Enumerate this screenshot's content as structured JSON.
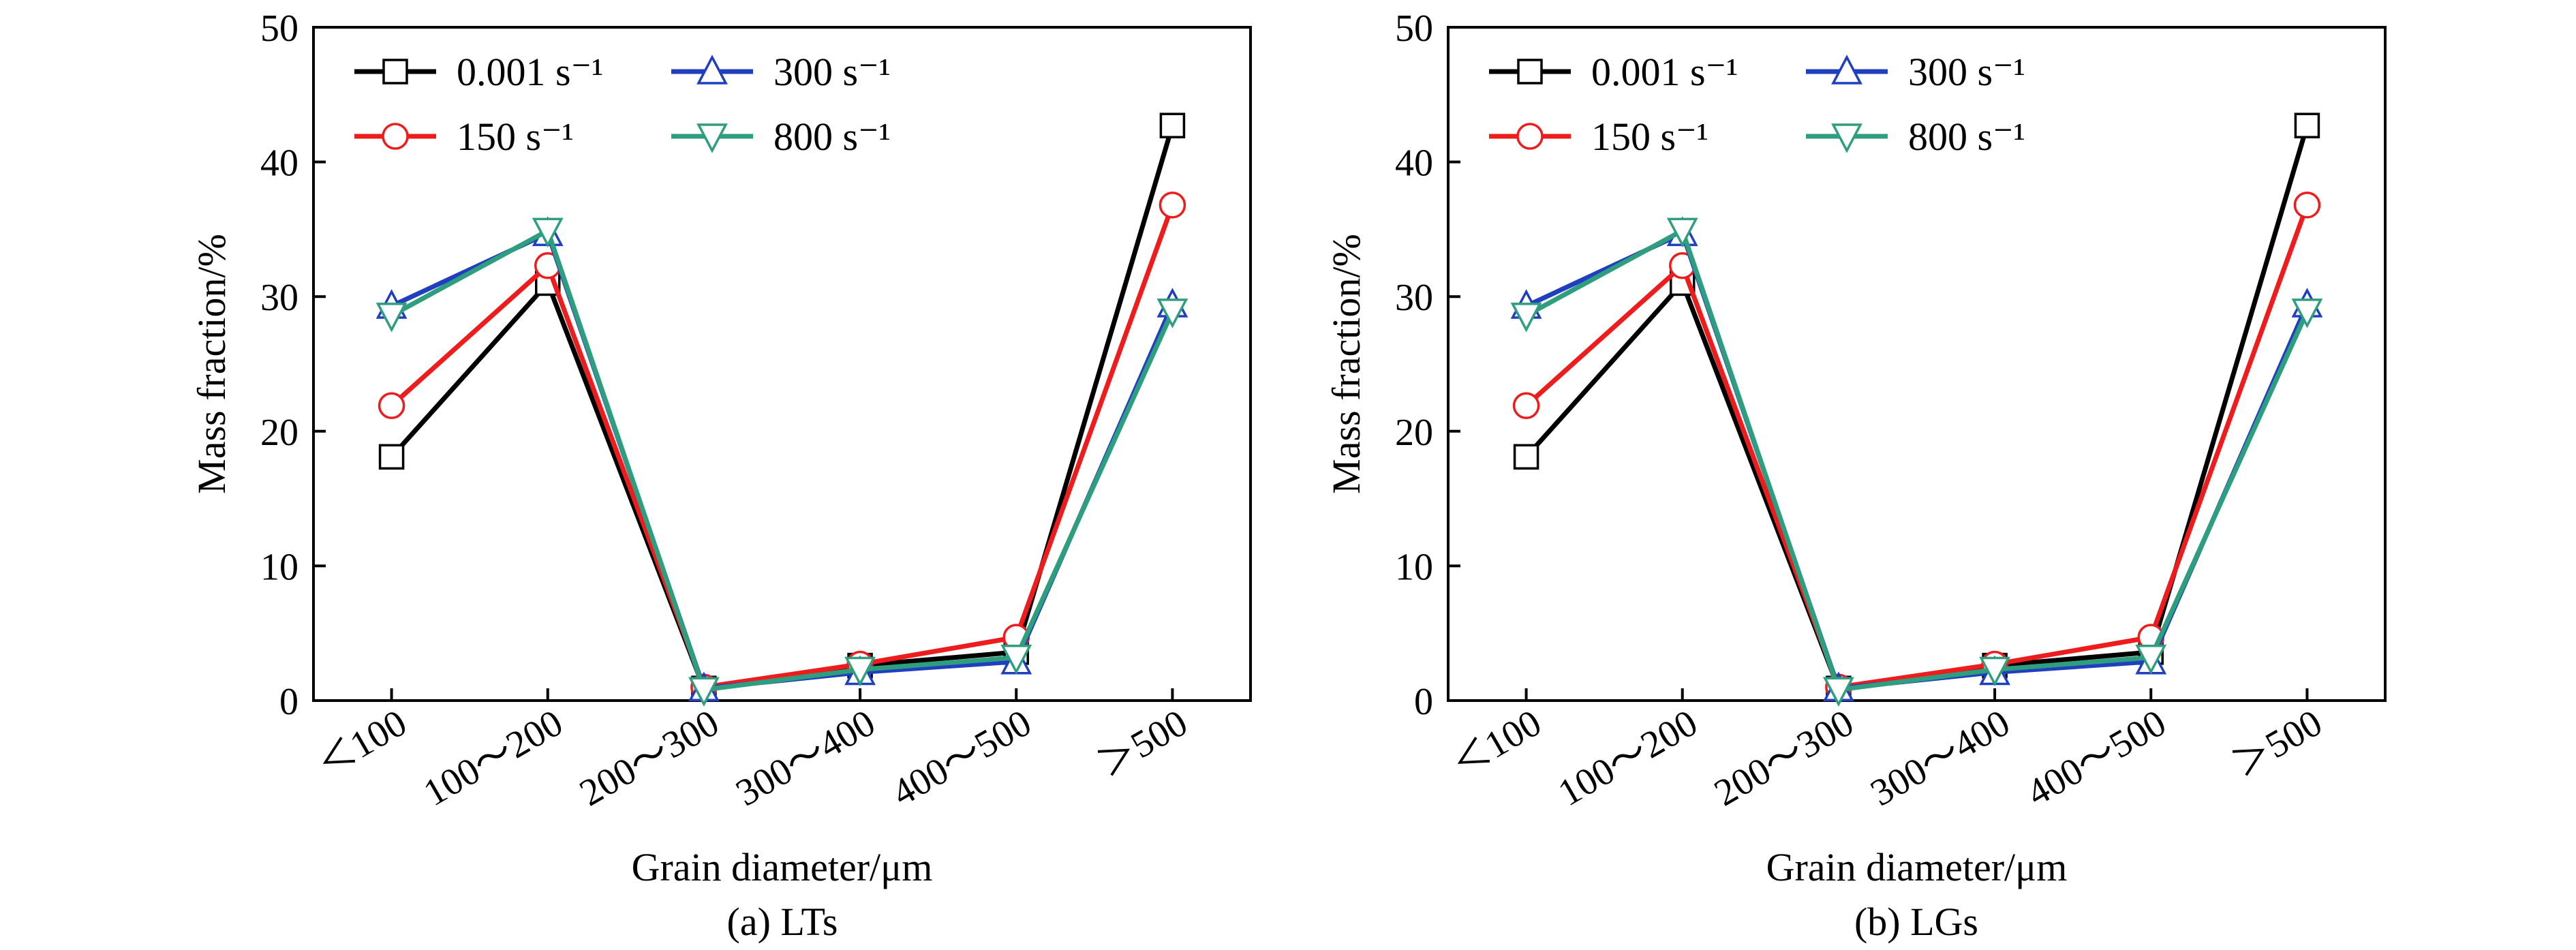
{
  "chart_data": [
    {
      "type": "line",
      "caption": "(a) LTs",
      "xlabel": "Grain diameter/μm",
      "ylabel": "Mass fraction/%",
      "categories": [
        "＜100",
        "100～200",
        "200～300",
        "300～400",
        "400～500",
        "＞500"
      ],
      "ylim": [
        0,
        50
      ],
      "yticks": [
        0,
        10,
        20,
        30,
        40,
        50
      ],
      "grid": false,
      "legend_position": "top-left",
      "series": [
        {
          "name": "0.001 s⁻¹",
          "color": "#000000",
          "marker": "square",
          "values": [
            18.1,
            31.0,
            0.9,
            2.6,
            3.6,
            42.7
          ]
        },
        {
          "name": "150 s⁻¹",
          "color": "#ee1c1c",
          "marker": "circle",
          "values": [
            21.9,
            32.3,
            1.0,
            2.7,
            4.7,
            36.8
          ]
        },
        {
          "name": "300 s⁻¹",
          "color": "#1f3fbf",
          "marker": "triangle-up",
          "values": [
            29.3,
            34.7,
            0.9,
            2.1,
            2.9,
            29.4
          ]
        },
        {
          "name": "800 s⁻¹",
          "color": "#2e9e7f",
          "marker": "triangle-down",
          "values": [
            28.6,
            34.9,
            0.8,
            2.3,
            3.2,
            28.9
          ]
        }
      ]
    },
    {
      "type": "line",
      "caption": "(b) LGs",
      "xlabel": "Grain diameter/μm",
      "ylabel": "Mass fraction/%",
      "categories": [
        "＜100",
        "100～200",
        "200～300",
        "300～400",
        "400～500",
        "＞500"
      ],
      "ylim": [
        0,
        50
      ],
      "yticks": [
        0,
        10,
        20,
        30,
        40,
        50
      ],
      "grid": false,
      "legend_position": "top-left",
      "series": [
        {
          "name": "0.001 s⁻¹",
          "color": "#000000",
          "marker": "square",
          "values": [
            18.1,
            31.0,
            0.9,
            2.6,
            3.6,
            42.7
          ]
        },
        {
          "name": "150 s⁻¹",
          "color": "#ee1c1c",
          "marker": "circle",
          "values": [
            21.9,
            32.3,
            1.0,
            2.7,
            4.7,
            36.8
          ]
        },
        {
          "name": "300 s⁻¹",
          "color": "#1f3fbf",
          "marker": "triangle-up",
          "values": [
            29.3,
            34.7,
            0.9,
            2.1,
            2.9,
            29.4
          ]
        },
        {
          "name": "800 s⁻¹",
          "color": "#2e9e7f",
          "marker": "triangle-down",
          "values": [
            28.6,
            34.9,
            0.8,
            2.3,
            3.2,
            28.9
          ]
        }
      ]
    }
  ]
}
